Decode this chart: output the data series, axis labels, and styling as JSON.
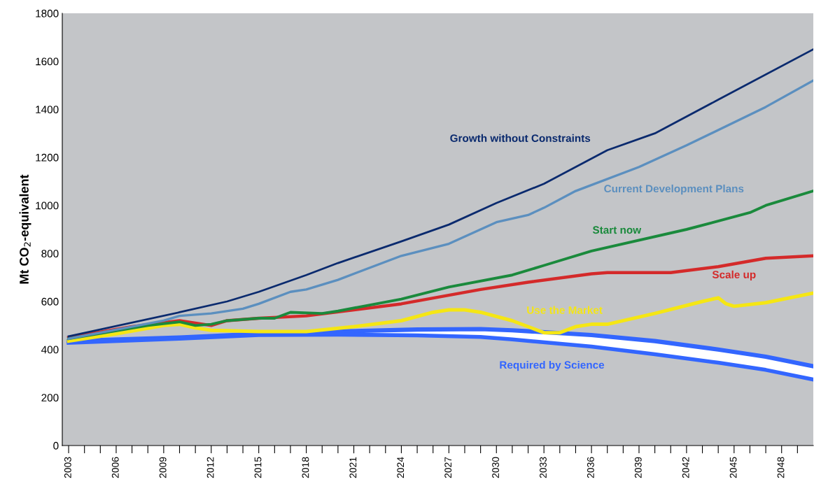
{
  "chart_data": {
    "type": "line",
    "ylabel": "Mt CO$_{2}$-equivalent",
    "xlim": [
      2002.6,
      2050
    ],
    "ylim": [
      0,
      1800
    ],
    "xticks": [
      2003,
      {
        "value": 2004,
        "label": null
      },
      {
        "value": 2005,
        "label": null
      },
      2006,
      {
        "value": 2007,
        "label": null
      },
      {
        "value": 2008,
        "label": null
      },
      2009,
      {
        "value": 2010,
        "label": null
      },
      {
        "value": 2011,
        "label": null
      },
      2012,
      {
        "value": 2013,
        "label": null
      },
      {
        "value": 2014,
        "label": null
      },
      2015,
      {
        "value": 2016,
        "label": null
      },
      {
        "value": 2017,
        "label": null
      },
      2018,
      {
        "value": 2019,
        "label": null
      },
      {
        "value": 2020,
        "label": null
      },
      2021,
      {
        "value": 2022,
        "label": null
      },
      {
        "value": 2023,
        "label": null
      },
      2024,
      {
        "value": 2025,
        "label": null
      },
      {
        "value": 2026,
        "label": null
      },
      2027,
      {
        "value": 2028,
        "label": null
      },
      {
        "value": 2029,
        "label": null
      },
      2030,
      {
        "value": 2031,
        "label": null
      },
      {
        "value": 2032,
        "label": null
      },
      2033,
      {
        "value": 2034,
        "label": null
      },
      {
        "value": 2035,
        "label": null
      },
      2036,
      {
        "value": 2037,
        "label": null
      },
      {
        "value": 2038,
        "label": null
      },
      2039,
      {
        "value": 2040,
        "label": null
      },
      {
        "value": 2041,
        "label": null
      },
      2042,
      {
        "value": 2043,
        "label": null
      },
      {
        "value": 2044,
        "label": null
      },
      2045,
      {
        "value": 2046,
        "label": null
      },
      {
        "value": 2047,
        "label": null
      },
      2048,
      {
        "value": 2049,
        "label": null
      }
    ],
    "yticks": [
      0,
      200,
      400,
      600,
      800,
      1000,
      1200,
      1400,
      1600,
      1800
    ],
    "grid": false,
    "legend": false,
    "marker": "none",
    "line_style": "solid",
    "series": [
      {
        "name": "Required by Science",
        "color": "#3366ff",
        "x": [
          2003,
          2010,
          2015,
          2020,
          2025,
          2029,
          2031,
          2036,
          2040,
          2044,
          2047,
          2050
        ],
        "values": [
          435,
          450,
          465,
          475,
          483,
          485,
          480,
          460,
          435,
          400,
          370,
          330
        ],
        "upper": [
          435,
          450,
          465,
          475,
          483,
          485,
          480,
          460,
          435,
          400,
          370,
          330
        ],
        "lower": [
          428,
          445,
          460,
          462,
          459,
          452,
          442,
          412,
          380,
          345,
          315,
          275
        ]
      },
      {
        "color": "#3366ff",
        "x": [
          2003,
          2010,
          2015,
          2020,
          2025,
          2029,
          2031,
          2036,
          2040,
          2044,
          2047,
          2050
        ],
        "values": [
          428,
          445,
          460,
          462,
          459,
          452,
          442,
          412,
          380,
          345,
          315,
          275
        ]
      },
      {
        "name": "Use the Market",
        "color": "#f5e614",
        "x": [
          2003,
          2006,
          2009,
          2010,
          2011,
          2012,
          2015,
          2018,
          2021,
          2024,
          2026,
          2027,
          2028,
          2029,
          2031,
          2033,
          2034,
          2035,
          2036,
          2037,
          2040,
          2043,
          2044,
          2044.5,
          2045,
          2047,
          2050
        ],
        "values": [
          435,
          465,
          500,
          505,
          490,
          480,
          475,
          475,
          495,
          520,
          555,
          565,
          565,
          555,
          520,
          470,
          470,
          495,
          505,
          505,
          550,
          600,
          615,
          590,
          580,
          595,
          635
        ]
      },
      {
        "name": "Scale up",
        "color": "#d42a2a",
        "x": [
          2003,
          2007,
          2010,
          2012,
          2013,
          2015,
          2018,
          2024,
          2029,
          2032,
          2036,
          2037,
          2041,
          2044,
          2047,
          2050
        ],
        "values": [
          450,
          495,
          520,
          500,
          520,
          530,
          540,
          590,
          650,
          680,
          715,
          720,
          720,
          745,
          780,
          790
        ]
      },
      {
        "name": "Start now",
        "color": "#1a8a3c",
        "x": [
          2003,
          2008,
          2010,
          2011,
          2012,
          2013,
          2015,
          2016,
          2017,
          2019,
          2020,
          2024,
          2027,
          2031,
          2033,
          2036,
          2042,
          2046,
          2047,
          2050
        ],
        "values": [
          445,
          500,
          515,
          500,
          505,
          520,
          530,
          530,
          555,
          550,
          560,
          610,
          660,
          710,
          750,
          810,
          900,
          970,
          1000,
          1060
        ]
      },
      {
        "name": "Current Development Plans",
        "color": "#5b8fbf",
        "x": [
          2003,
          2009,
          2010,
          2012,
          2014,
          2015,
          2017,
          2018,
          2020,
          2024,
          2027,
          2030,
          2032,
          2033,
          2035,
          2039,
          2042,
          2047,
          2050
        ],
        "values": [
          445,
          520,
          540,
          550,
          570,
          590,
          640,
          650,
          690,
          790,
          840,
          930,
          960,
          990,
          1060,
          1160,
          1250,
          1410,
          1520
        ]
      },
      {
        "name": "Growth without Constraints",
        "color": "#0a2a6e",
        "x": [
          2003,
          2010,
          2013,
          2015,
          2018,
          2020,
          2024,
          2027,
          2030,
          2033,
          2037,
          2040,
          2044,
          2050
        ],
        "values": [
          455,
          555,
          600,
          640,
          710,
          760,
          850,
          920,
          1010,
          1090,
          1230,
          1300,
          1440,
          1650
        ]
      }
    ]
  }
}
